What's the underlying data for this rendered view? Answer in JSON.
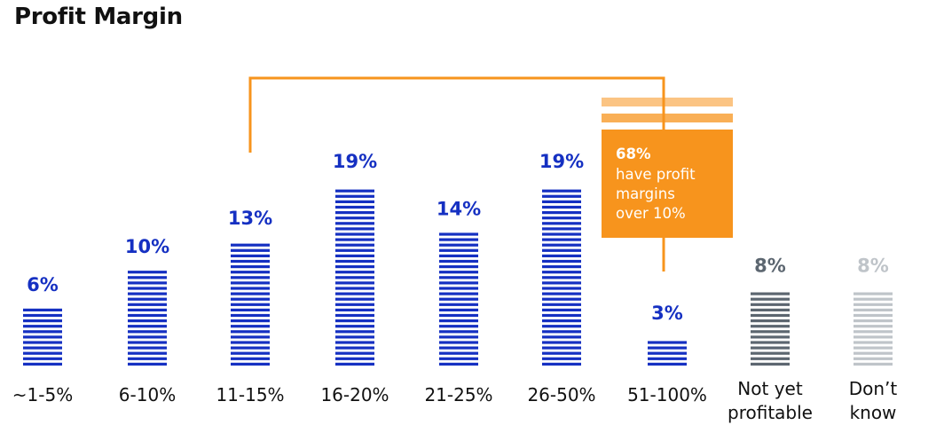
{
  "chart_data": {
    "type": "bar",
    "title": "Profit Margin",
    "categories": [
      [
        "~1-5%"
      ],
      [
        "6-10%"
      ],
      [
        "11-15%"
      ],
      [
        "16-20%"
      ],
      [
        "21-25%"
      ],
      [
        "26-50%"
      ],
      [
        "51-100%"
      ],
      [
        "Not yet",
        "profitable"
      ],
      [
        "Don’t",
        "know"
      ]
    ],
    "values": [
      6,
      10,
      13,
      19,
      14,
      19,
      3,
      8,
      8
    ],
    "value_labels": [
      "6%",
      "10%",
      "13%",
      "19%",
      "14%",
      "19%",
      "3%",
      "8%",
      "8%"
    ],
    "bar_colors": [
      "#1530c2",
      "#1530c2",
      "#1530c2",
      "#1530c2",
      "#1530c2",
      "#1530c2",
      "#1530c2",
      "#5c6670",
      "#bfc4c9"
    ],
    "ylim": [
      0,
      19
    ],
    "grid": false,
    "bracket": {
      "from_category": 2,
      "to_category": 6,
      "color": "#f7941d"
    },
    "callout": {
      "bold": "68%",
      "lines": [
        "have profit",
        "margins",
        "over 10%"
      ],
      "color": "#f7941d"
    }
  }
}
